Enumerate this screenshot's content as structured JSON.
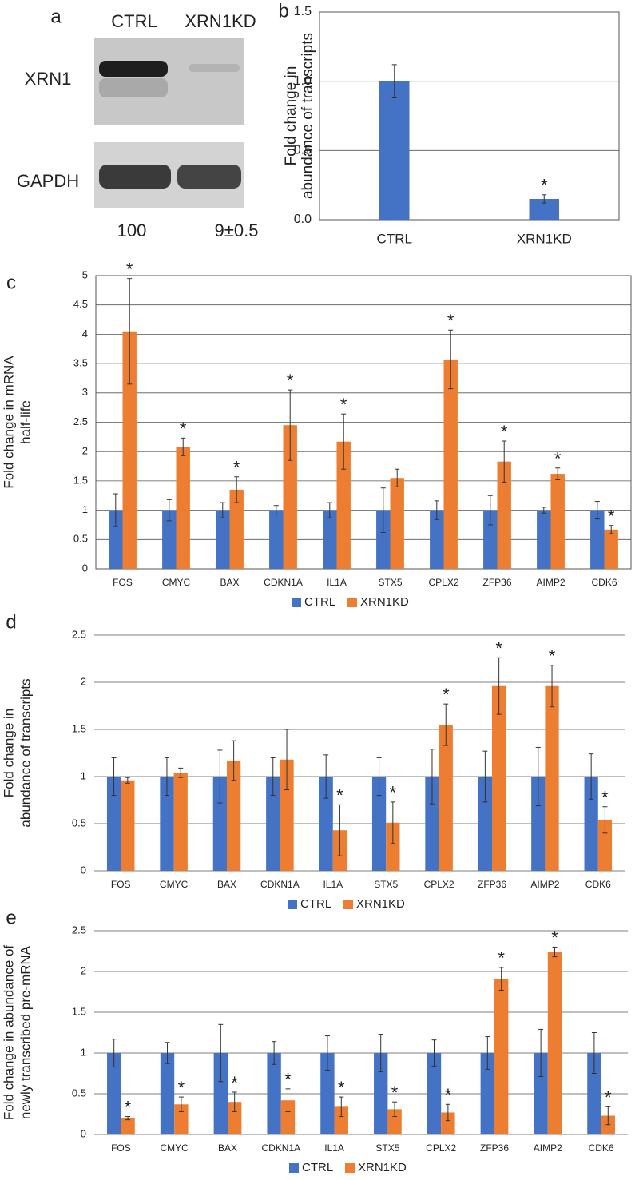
{
  "panel_a": {
    "letter": "a",
    "columns": [
      "CTRL",
      "XRN1KD"
    ],
    "rows": [
      "XRN1",
      "GAPDH"
    ],
    "quantification": [
      "100",
      "9±0.5"
    ]
  },
  "chart_data": [
    {
      "type": "bar",
      "letter": "b",
      "ylabel": [
        "Fold change in",
        "abundance of transcripts"
      ],
      "categories": [
        "CTRL",
        "XRN1KD"
      ],
      "values": [
        1.0,
        0.15
      ],
      "errors": [
        0.12,
        0.03
      ],
      "labels": [
        null,
        "*"
      ],
      "color": "#4472c4",
      "ylim": [
        0,
        1.5
      ],
      "yticks": [
        {
          "value": 0,
          "label": "0.0"
        },
        0.5,
        {
          "value": 1,
          "label": "1.0"
        },
        1.5
      ],
      "grid": true,
      "frame": true
    },
    {
      "type": "bar",
      "letter": "c",
      "ylabel": [
        "Fold change in mRNA",
        "half-life"
      ],
      "categories": [
        "FOS",
        "CMYC",
        "BAX",
        "CDKN1A",
        "IL1A",
        "STX5",
        "CPLX2",
        "ZFP36",
        "AIMP2",
        "CDK6"
      ],
      "series": [
        {
          "name": "CTRL",
          "color": "#4472c4",
          "values": [
            1,
            1,
            1,
            1,
            1,
            1,
            1,
            1,
            1,
            1
          ],
          "errors": [
            0.28,
            0.18,
            0.13,
            0.08,
            0.13,
            0.38,
            0.16,
            0.25,
            0.05,
            0.15
          ]
        },
        {
          "name": "XRN1KD",
          "color": "#ed7d31",
          "values": [
            4.05,
            2.08,
            1.35,
            2.45,
            2.17,
            1.55,
            3.57,
            1.83,
            1.62,
            0.67
          ],
          "errors": [
            0.9,
            0.15,
            0.22,
            0.6,
            0.47,
            0.15,
            0.5,
            0.35,
            0.1,
            0.07
          ],
          "labels": [
            "*",
            "*",
            "*",
            "*",
            "*",
            null,
            "*",
            "*",
            "*",
            "*"
          ]
        }
      ],
      "ylim": [
        0,
        5
      ],
      "yticks": [
        0,
        0.5,
        1,
        1.5,
        2,
        2.5,
        3,
        3.5,
        4,
        4.5,
        5
      ],
      "grid": true,
      "frame": true,
      "legend": "bottom"
    },
    {
      "type": "bar",
      "letter": "d",
      "ylabel": [
        "Fold change in",
        "abundance of transcripts"
      ],
      "categories": [
        "FOS",
        "CMYC",
        "BAX",
        "CDKN1A",
        "IL1A",
        "STX5",
        "CPLX2",
        "ZFP36",
        "AIMP2",
        "CDK6"
      ],
      "series": [
        {
          "name": "CTRL",
          "color": "#4472c4",
          "values": [
            1,
            1,
            1,
            1,
            1,
            1,
            1,
            1,
            1,
            1
          ],
          "errors": [
            0.2,
            0.2,
            0.28,
            0.2,
            0.23,
            0.2,
            0.29,
            0.27,
            0.31,
            0.24
          ]
        },
        {
          "name": "XRN1KD",
          "color": "#ed7d31",
          "values": [
            0.96,
            1.04,
            1.17,
            1.18,
            0.43,
            0.51,
            1.55,
            1.96,
            1.96,
            0.54
          ],
          "errors": [
            0.03,
            0.05,
            0.21,
            0.32,
            0.27,
            0.22,
            0.22,
            0.3,
            0.22,
            0.14
          ],
          "labels": [
            null,
            null,
            null,
            null,
            "*",
            "*",
            "*",
            "*",
            "*",
            "*"
          ]
        }
      ],
      "ylim": [
        0,
        2.5
      ],
      "yticks": [
        0,
        0.5,
        1,
        1.5,
        2,
        2.5
      ],
      "grid": true,
      "frame": false,
      "legend": "bottom"
    },
    {
      "type": "bar",
      "letter": "e",
      "ylabel": [
        "Fold change in abundance of",
        "newly transcribed  pre-mRNA"
      ],
      "categories": [
        "FOS",
        "CMYC",
        "BAX",
        "CDKN1A",
        "IL1A",
        "STX5",
        "CPLX2",
        "ZFP36",
        "AIMP2",
        "CDK6"
      ],
      "series": [
        {
          "name": "CTRL",
          "color": "#4472c4",
          "values": [
            1,
            1,
            1,
            1,
            1,
            1,
            1,
            1,
            1,
            1
          ],
          "errors": [
            0.17,
            0.13,
            0.35,
            0.14,
            0.21,
            0.23,
            0.16,
            0.2,
            0.29,
            0.25
          ]
        },
        {
          "name": "XRN1KD",
          "color": "#ed7d31",
          "values": [
            0.2,
            0.37,
            0.4,
            0.42,
            0.34,
            0.31,
            0.27,
            1.91,
            2.24,
            0.23
          ],
          "errors": [
            0.02,
            0.09,
            0.12,
            0.14,
            0.12,
            0.09,
            0.1,
            0.14,
            0.06,
            0.11
          ],
          "labels": [
            "*",
            "*",
            "*",
            "*",
            "*",
            "*",
            "*",
            "*",
            "*",
            "*"
          ]
        }
      ],
      "ylim": [
        0,
        2.5
      ],
      "yticks": [
        0,
        0.5,
        1,
        1.5,
        2,
        2.5
      ],
      "grid": true,
      "frame": false,
      "legend": "bottom"
    }
  ]
}
